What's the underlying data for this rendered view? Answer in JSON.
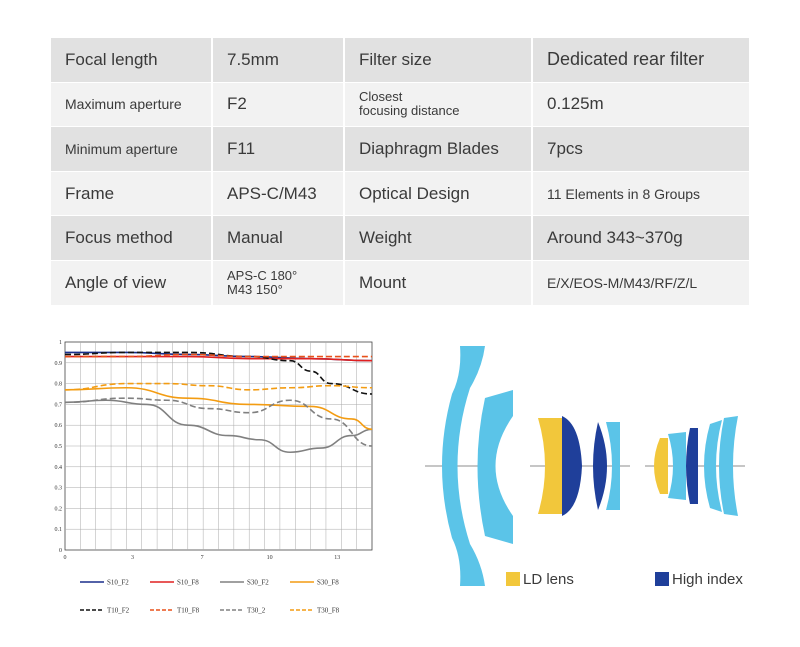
{
  "specs": [
    {
      "label": "Focal length",
      "value": "7.5mm",
      "label2": "Filter size",
      "value2": "Dedicated rear filter"
    },
    {
      "label": "Maximum aperture",
      "value": "F2",
      "label2": "Closest\nfocusing distance",
      "value2": "0.125m"
    },
    {
      "label": "Minimum aperture",
      "value": "F11",
      "label2": "Diaphragm Blades",
      "value2": "7pcs"
    },
    {
      "label": "Frame",
      "value": "APS-C/M43",
      "label2": "Optical Design",
      "value2": "11 Elements in 8 Groups"
    },
    {
      "label": "Focus method",
      "value": "Manual",
      "label2": "Weight",
      "value2": "Around 343~370g"
    },
    {
      "label": "Angle of view",
      "value": "APS-C 180°\nM43 150°",
      "label2": "Mount",
      "value2": "E/X/EOS-M/M43/RF/Z/L"
    }
  ],
  "chart_data": {
    "type": "line",
    "ylim": [
      0,
      1
    ],
    "xlim": [
      0,
      15
    ],
    "y_ticks": [
      "0",
      "0.1",
      "0.2",
      "0.3",
      "0.4",
      "0.5",
      "0.6",
      "0.7",
      "0.8",
      "0.9",
      "1"
    ],
    "x_ticks": [
      "0",
      "3",
      "7",
      "10",
      "13"
    ],
    "x_tick_values": [
      0,
      3.3,
      6.7,
      10,
      13.3
    ],
    "grid": true,
    "legend_position": "bottom",
    "series": [
      {
        "name": "S10_F2",
        "color": "#1a2f8c",
        "dash": false,
        "x": [
          0,
          3,
          6,
          9,
          12,
          15
        ],
        "y": [
          0.95,
          0.95,
          0.94,
          0.93,
          0.92,
          0.91
        ]
      },
      {
        "name": "S10_F8",
        "color": "#e02020",
        "dash": false,
        "x": [
          0,
          3,
          6,
          9,
          12,
          15
        ],
        "y": [
          0.93,
          0.93,
          0.93,
          0.92,
          0.92,
          0.91
        ]
      },
      {
        "name": "S30_F2",
        "color": "#808080",
        "dash": false,
        "x": [
          0,
          2,
          4,
          6,
          8,
          9.5,
          11,
          12.5,
          14,
          15
        ],
        "y": [
          0.71,
          0.72,
          0.7,
          0.6,
          0.55,
          0.53,
          0.47,
          0.49,
          0.55,
          0.58
        ]
      },
      {
        "name": "S30_F8",
        "color": "#f39c12",
        "dash": false,
        "x": [
          0,
          3,
          6,
          9,
          12,
          14,
          15
        ],
        "y": [
          0.77,
          0.78,
          0.73,
          0.7,
          0.69,
          0.63,
          0.58
        ]
      },
      {
        "name": "T10_F2",
        "color": "#111111",
        "dash": true,
        "x": [
          0,
          3,
          6,
          9,
          11,
          12,
          13,
          15
        ],
        "y": [
          0.94,
          0.95,
          0.95,
          0.93,
          0.91,
          0.86,
          0.8,
          0.75
        ]
      },
      {
        "name": "T10_F8",
        "color": "#e8501a",
        "dash": true,
        "x": [
          0,
          3,
          6,
          9,
          12,
          15
        ],
        "y": [
          0.93,
          0.93,
          0.94,
          0.93,
          0.93,
          0.93
        ]
      },
      {
        "name": "T30_2",
        "color": "#808080",
        "dash": true,
        "x": [
          0,
          3,
          5,
          7,
          9,
          11,
          13,
          15
        ],
        "y": [
          0.71,
          0.73,
          0.72,
          0.68,
          0.66,
          0.72,
          0.63,
          0.5
        ]
      },
      {
        "name": "T30_F8",
        "color": "#f39c12",
        "dash": true,
        "x": [
          0,
          3,
          5,
          7,
          9,
          11,
          13,
          15
        ],
        "y": [
          0.77,
          0.8,
          0.8,
          0.79,
          0.77,
          0.78,
          0.79,
          0.78
        ]
      }
    ]
  },
  "lens_legend": {
    "ld_label": "LD lens",
    "ld_color": "#f2c73b",
    "hi_label": "High index",
    "hi_color": "#1f3f9a",
    "base_color": "#5bc4e8"
  }
}
